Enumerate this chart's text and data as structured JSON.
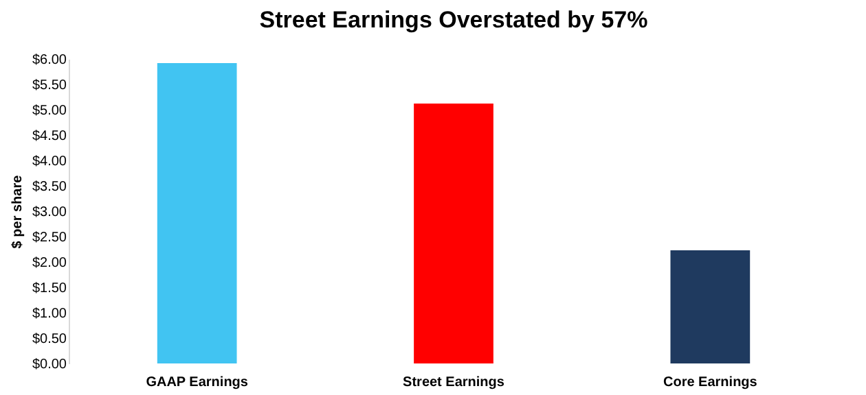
{
  "chart_data": {
    "type": "bar",
    "title": "Street Earnings Overstated by 57%",
    "ylabel": "$ per share",
    "categories": [
      "GAAP Earnings",
      "Street Earnings",
      "Core Earnings"
    ],
    "values": [
      5.92,
      5.12,
      2.23
    ],
    "colors": [
      "#41c4f2",
      "#ff0000",
      "#1f3a5f"
    ],
    "ylim": [
      0,
      6
    ],
    "yticks": [
      {
        "value": 0,
        "label": "$0.00"
      },
      {
        "value": 0.5,
        "label": "$0.50"
      },
      {
        "value": 1,
        "label": "$1.00"
      },
      {
        "value": 1.5,
        "label": "$1.50"
      },
      {
        "value": 2,
        "label": "$2.00"
      },
      {
        "value": 2.5,
        "label": "$2.50"
      },
      {
        "value": 3,
        "label": "$3.00"
      },
      {
        "value": 3.5,
        "label": "$3.50"
      },
      {
        "value": 4,
        "label": "$4.00"
      },
      {
        "value": 4.5,
        "label": "$4.50"
      },
      {
        "value": 5,
        "label": "$5.00"
      },
      {
        "value": 5.5,
        "label": "$5.50"
      },
      {
        "value": 6,
        "label": "$6.00"
      }
    ],
    "grid": false
  }
}
